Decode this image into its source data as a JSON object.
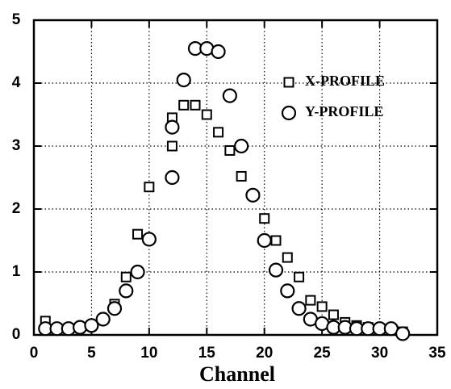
{
  "chart_data": {
    "type": "scatter",
    "x_label": "Channel",
    "xlim": [
      0,
      35
    ],
    "xticks": [
      0,
      5,
      10,
      15,
      20,
      25,
      30,
      35
    ],
    "ylim": [
      0,
      5
    ],
    "yticks": [
      0,
      1,
      2,
      3,
      4,
      5
    ],
    "grid": true,
    "legend": "upper right",
    "series": [
      {
        "name": "X-PROFILE",
        "marker": "square",
        "color": "#000000",
        "x": [
          1,
          2,
          3,
          4,
          5,
          6,
          7,
          8,
          9,
          10,
          12,
          12,
          13,
          14,
          15,
          16,
          17,
          18,
          20,
          21,
          22,
          23,
          24,
          25,
          26,
          27,
          28,
          29,
          30,
          31,
          32
        ],
        "values": [
          0.22,
          0.1,
          0.1,
          0.12,
          0.15,
          0.25,
          0.49,
          0.92,
          1.6,
          2.35,
          3.0,
          3.45,
          3.65,
          3.65,
          3.5,
          3.22,
          2.93,
          2.52,
          1.85,
          1.5,
          1.23,
          0.92,
          0.55,
          0.45,
          0.32,
          0.2,
          0.15,
          0.12,
          0.1,
          0.1,
          0.05
        ]
      },
      {
        "name": "Y-PROFILE",
        "marker": "circle",
        "color": "#000000",
        "x": [
          1,
          2,
          3,
          4,
          5,
          6,
          7,
          8,
          9,
          10,
          12,
          12,
          13,
          14,
          15,
          16,
          17,
          18,
          19,
          20,
          21,
          22,
          23,
          24,
          25,
          26,
          27,
          28,
          29,
          30,
          31,
          32
        ],
        "values": [
          0.1,
          0.1,
          0.1,
          0.12,
          0.15,
          0.25,
          0.42,
          0.7,
          1.0,
          1.52,
          2.5,
          3.3,
          4.05,
          4.55,
          4.55,
          4.5,
          3.8,
          3.0,
          2.22,
          1.5,
          1.03,
          0.7,
          0.42,
          0.25,
          0.18,
          0.12,
          0.12,
          0.1,
          0.1,
          0.1,
          0.1,
          0.02
        ]
      }
    ]
  }
}
